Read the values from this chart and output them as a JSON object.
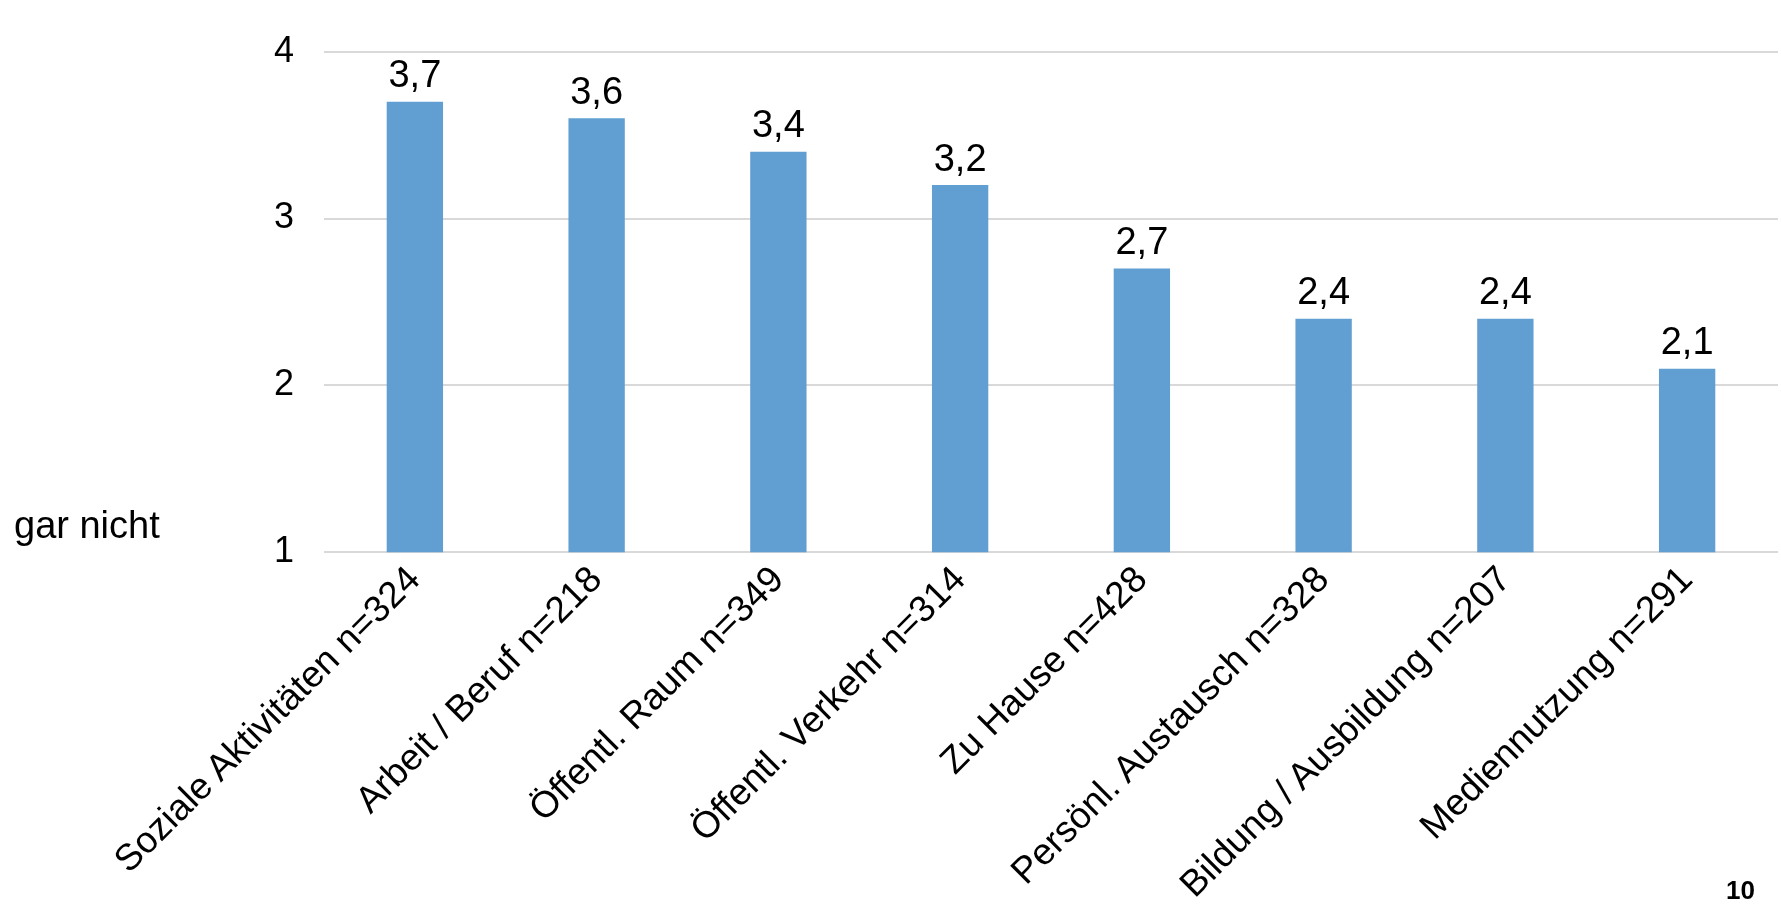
{
  "chart_data": {
    "type": "bar",
    "categories": [
      "Soziale Aktivitäten n=324",
      "Arbeit / Beruf n=218",
      "Öffentl. Raum n=349",
      "Öffentl. Verkehr n=314",
      "Zu Hause n=428",
      "Persönl. Austausch n=328",
      "Bildung / Ausbildung n=207",
      "Mediennutzung n=291"
    ],
    "values": [
      3.7,
      3.6,
      3.4,
      3.2,
      2.7,
      2.4,
      2.4,
      2.1
    ],
    "color": "#619fd2",
    "ylim": [
      1,
      4
    ],
    "yticks": [
      1,
      2,
      3,
      4
    ],
    "grid": "y",
    "value_labels": [
      "3,7",
      "3,6",
      "3,4",
      "3,2",
      "2,7",
      "2,4",
      "2,4",
      "2,1"
    ],
    "annotations": [
      "gar nicht",
      "10"
    ]
  }
}
